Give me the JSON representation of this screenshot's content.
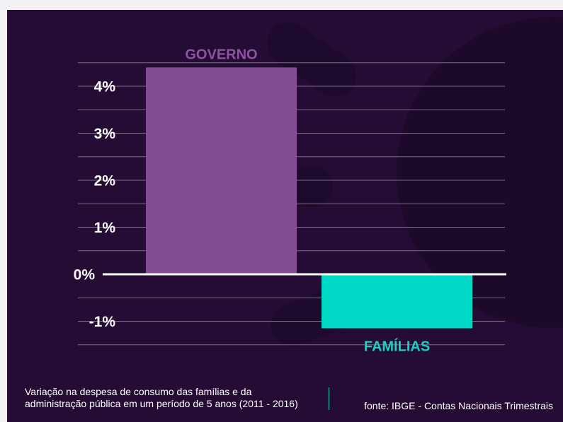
{
  "chart_data": {
    "type": "bar",
    "categories": [
      "GOVERNO",
      "FAMÍLIAS"
    ],
    "values": [
      4.4,
      -1.15
    ],
    "ylim": [
      -1.5,
      4.5
    ],
    "yticks": [
      4,
      3,
      2,
      1,
      0,
      -1
    ],
    "ytick_labels": [
      "4%",
      "3%",
      "2%",
      "1%",
      "0%",
      "-1%"
    ],
    "grid": true,
    "colors": [
      "#834d94",
      "#00d9c6"
    ],
    "label_colors": [
      "#8d53a0",
      "#1fcfc1"
    ],
    "xlabel": "",
    "ylabel": ""
  },
  "caption": {
    "line1": "Variação na despesa de consumo das famílias e da",
    "line2": "administração pública em um período de 5 anos (2011 - 2016)"
  },
  "source": "fonte: IBGE - Contas Nacionais Trimestrais",
  "colors": {
    "background": "#250c35",
    "grid": "#9c8aa6",
    "zero_line": "#ffffff"
  }
}
